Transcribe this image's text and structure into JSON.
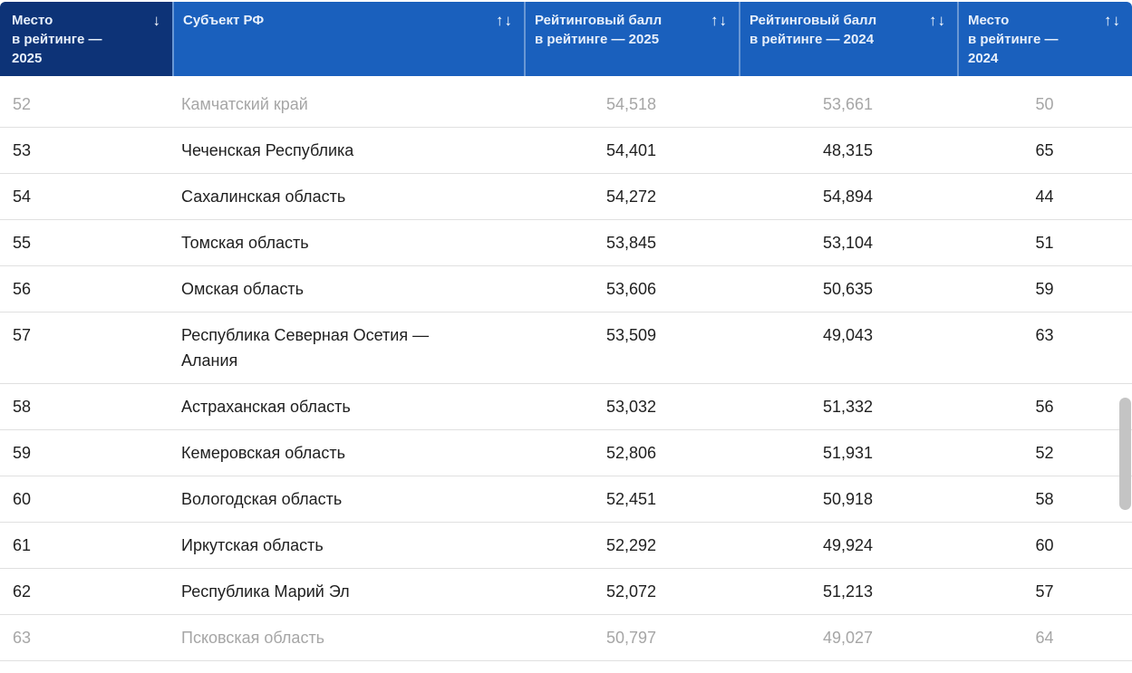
{
  "colors": {
    "header_bg": "#1A60BD",
    "header_bg_dark": "#0D3377",
    "header_text": "#E8F0FB",
    "sort_icon": "#FFFFFF",
    "row_text": "#1F1F1F",
    "faded_row_text": "#A6A6A6",
    "row_border": "#E0E0E0",
    "scrollbar_thumb": "#C4C4C4"
  },
  "header": {
    "columns": [
      {
        "id": "rank2025",
        "label": "Место\nв рейтинге —\n2025",
        "sort_icon": "↓",
        "sort_state": "descending",
        "dark": true
      },
      {
        "id": "region",
        "label": "Субъект РФ",
        "sort_icon": "↑↓",
        "sort_state": "none",
        "dark": false
      },
      {
        "id": "score2025",
        "label": "Рейтинговый балл\nв рейтинге — 2025",
        "sort_icon": "↑↓",
        "sort_state": "none",
        "dark": false
      },
      {
        "id": "score2024",
        "label": "Рейтинговый балл\nв рейтинге — 2024",
        "sort_icon": "↑↓",
        "sort_state": "none",
        "dark": false
      },
      {
        "id": "rank2024",
        "label": "Место\nв рейтинге —\n2024",
        "sort_icon": "↑↓",
        "sort_state": "none",
        "dark": false
      }
    ]
  },
  "rows": [
    {
      "rank2025": "52",
      "region": "Камчатский край",
      "score2025": "54,518",
      "score2024": "53,661",
      "rank2024": "50",
      "faded": true,
      "first": true
    },
    {
      "rank2025": "53",
      "region": "Чеченская Республика",
      "score2025": "54,401",
      "score2024": "48,315",
      "rank2024": "65",
      "faded": false,
      "first": false
    },
    {
      "rank2025": "54",
      "region": "Сахалинская область",
      "score2025": "54,272",
      "score2024": "54,894",
      "rank2024": "44",
      "faded": false,
      "first": false
    },
    {
      "rank2025": "55",
      "region": "Томская область",
      "score2025": "53,845",
      "score2024": "53,104",
      "rank2024": "51",
      "faded": false,
      "first": false
    },
    {
      "rank2025": "56",
      "region": "Омская область",
      "score2025": "53,606",
      "score2024": "50,635",
      "rank2024": "59",
      "faded": false,
      "first": false
    },
    {
      "rank2025": "57",
      "region": "Республика Северная Осетия —\nАлания",
      "score2025": "53,509",
      "score2024": "49,043",
      "rank2024": "63",
      "faded": false,
      "first": false
    },
    {
      "rank2025": "58",
      "region": "Астраханская область",
      "score2025": "53,032",
      "score2024": "51,332",
      "rank2024": "56",
      "faded": false,
      "first": false
    },
    {
      "rank2025": "59",
      "region": "Кемеровская область",
      "score2025": "52,806",
      "score2024": "51,931",
      "rank2024": "52",
      "faded": false,
      "first": false
    },
    {
      "rank2025": "60",
      "region": "Вологодская область",
      "score2025": "52,451",
      "score2024": "50,918",
      "rank2024": "58",
      "faded": false,
      "first": false
    },
    {
      "rank2025": "61",
      "region": "Иркутская область",
      "score2025": "52,292",
      "score2024": "49,924",
      "rank2024": "60",
      "faded": false,
      "first": false
    },
    {
      "rank2025": "62",
      "region": "Республика Марий Эл",
      "score2025": "52,072",
      "score2024": "51,213",
      "rank2024": "57",
      "faded": false,
      "first": false
    },
    {
      "rank2025": "63",
      "region": "Псковская область",
      "score2025": "50,797",
      "score2024": "49,027",
      "rank2024": "64",
      "faded": true,
      "first": false
    }
  ]
}
